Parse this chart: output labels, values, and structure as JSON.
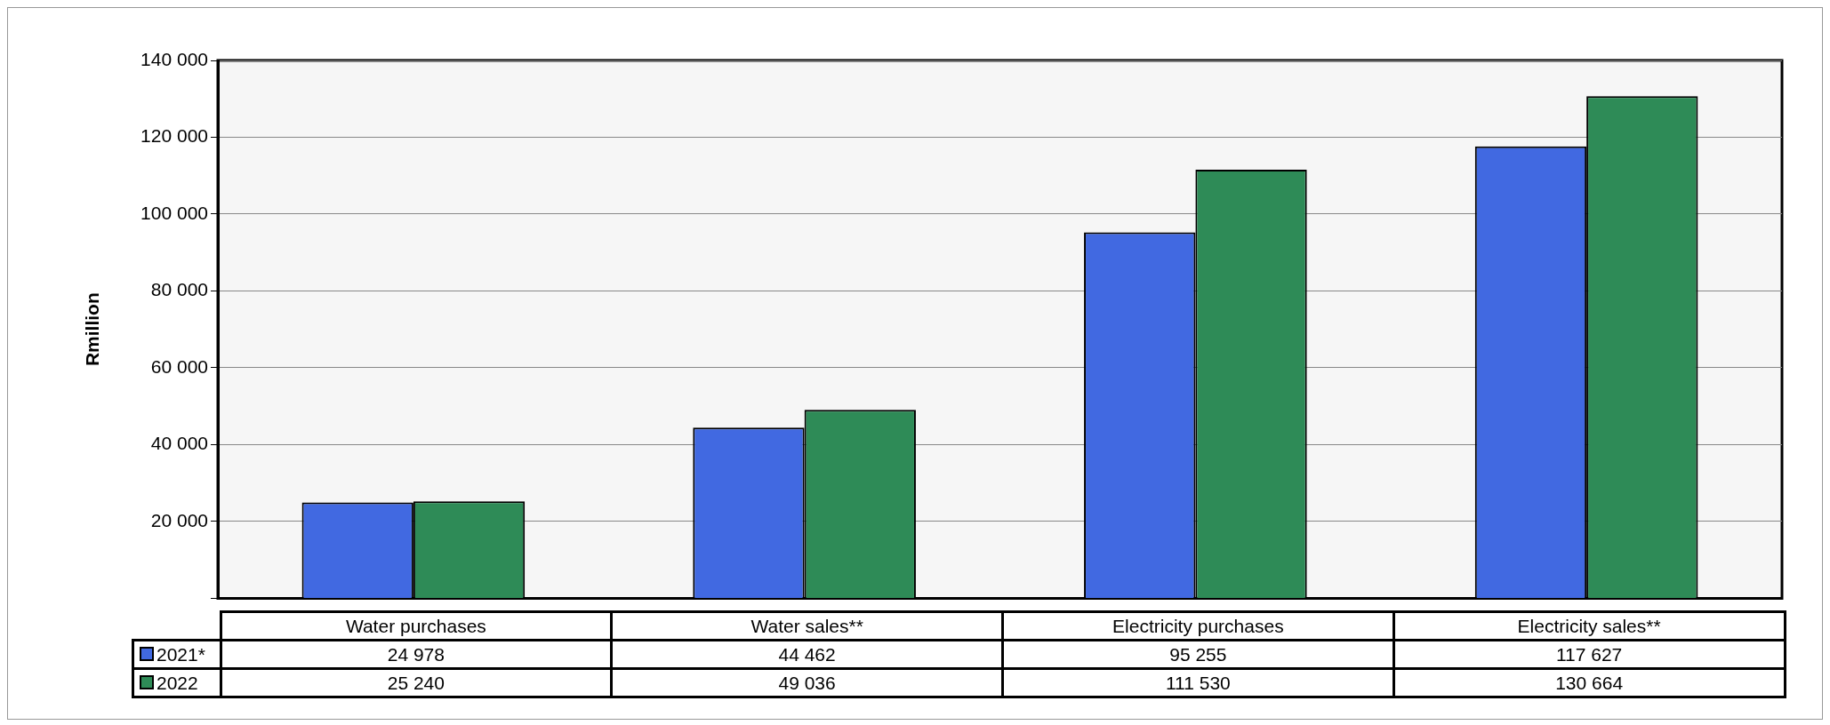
{
  "chart_data": {
    "type": "bar",
    "ylabel": "Rmillion",
    "categories": [
      "Water purchases",
      "Water sales**",
      "Electricity purchases",
      "Electricity sales**"
    ],
    "series": [
      {
        "name": "2021*",
        "color": "#4169e1",
        "values": [
          24978,
          44462,
          95255,
          117627
        ],
        "value_labels": [
          "24 978",
          "44 462",
          "95 255",
          "117 627"
        ]
      },
      {
        "name": "2022",
        "color": "#2e8b57",
        "values": [
          25240,
          49036,
          111530,
          130664
        ],
        "value_labels": [
          "25 240",
          "49 036",
          "111 530",
          "130 664"
        ]
      }
    ],
    "ylim": [
      0,
      140000
    ],
    "yticks": [
      {
        "value": 0,
        "label": null
      },
      {
        "value": 20000,
        "label": "20 000"
      },
      {
        "value": 40000,
        "label": "40 000"
      },
      {
        "value": 60000,
        "label": "60 000"
      },
      {
        "value": 80000,
        "label": "80 000"
      },
      {
        "value": 100000,
        "label": "100 000"
      },
      {
        "value": 120000,
        "label": "120 000"
      },
      {
        "value": 140000,
        "label": "140 000"
      }
    ],
    "grid": "y",
    "legend": "bottom"
  }
}
